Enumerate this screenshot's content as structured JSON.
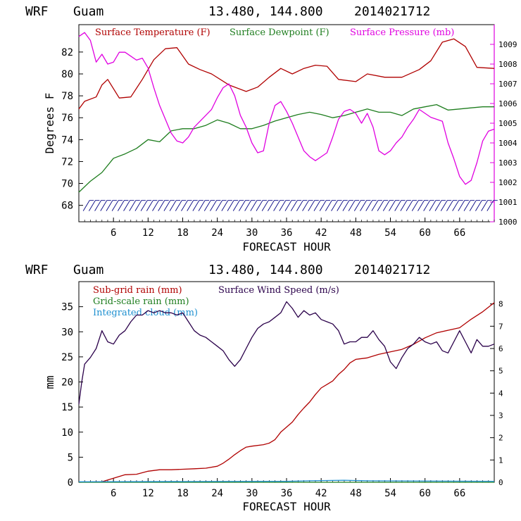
{
  "chart_data": [
    {
      "type": "line",
      "header": {
        "model": "WRF",
        "location": "Guam",
        "coords": "13.480, 144.800",
        "init": "2014021712"
      },
      "xlabel": "FORECAST HOUR",
      "ylabel": "Degrees F",
      "xlim": [
        0,
        72
      ],
      "xticks": [
        6,
        12,
        18,
        24,
        30,
        36,
        42,
        48,
        54,
        60,
        66
      ],
      "ylim": [
        66.5,
        84.5
      ],
      "yticks": [
        68,
        70,
        72,
        74,
        76,
        78,
        80,
        82
      ],
      "y2lim": [
        1000,
        1010
      ],
      "y2ticks": [
        1000,
        1001,
        1002,
        1003,
        1004,
        1005,
        1006,
        1007,
        1008,
        1009
      ],
      "colors": {
        "temperature": "#b00000",
        "dewpoint": "#1e7d1e",
        "pressure": "#e000e0",
        "barbs": "#000080"
      },
      "series": [
        {
          "name": "Surface Temperature (F)",
          "axis": "left",
          "x": [
            0,
            1,
            3,
            4,
            5,
            7,
            9,
            11,
            13,
            15,
            17,
            19,
            21,
            23,
            26,
            29,
            31,
            33,
            35,
            37,
            39,
            41,
            43,
            45,
            48,
            50,
            53,
            56,
            59,
            61,
            63,
            65,
            67,
            69,
            72
          ],
          "y": [
            76.8,
            77.5,
            77.9,
            79.0,
            79.5,
            77.8,
            77.9,
            79.5,
            81.3,
            82.3,
            82.4,
            80.9,
            80.4,
            80.0,
            79.0,
            78.4,
            78.8,
            79.7,
            80.5,
            80.0,
            80.5,
            80.8,
            80.7,
            79.5,
            79.3,
            80.0,
            79.7,
            79.7,
            80.4,
            81.2,
            82.9,
            83.2,
            82.5,
            80.6,
            80.5
          ]
        },
        {
          "name": "Surface Dewpoint (F)",
          "axis": "left",
          "x": [
            0,
            2,
            4,
            6,
            8,
            10,
            12,
            14,
            16,
            18,
            20,
            22,
            24,
            26,
            28,
            30,
            32,
            34,
            36,
            38,
            40,
            42,
            44,
            46,
            48,
            50,
            52,
            54,
            56,
            58,
            60,
            62,
            64,
            66,
            68,
            70,
            72
          ],
          "y": [
            69.2,
            70.2,
            71.0,
            72.3,
            72.7,
            73.2,
            74.0,
            73.8,
            74.8,
            75.0,
            75.0,
            75.3,
            75.8,
            75.5,
            75.0,
            75.0,
            75.3,
            75.7,
            76.0,
            76.3,
            76.5,
            76.3,
            76.0,
            76.2,
            76.5,
            76.8,
            76.5,
            76.5,
            76.2,
            76.8,
            77.0,
            77.2,
            76.7,
            76.8,
            76.9,
            77.0,
            77.0
          ]
        },
        {
          "name": "Surface Pressure (mb)",
          "axis": "right",
          "x": [
            0,
            1,
            2,
            3,
            4,
            5,
            6,
            7,
            8,
            9,
            10,
            11,
            12,
            13,
            14,
            15,
            16,
            17,
            18,
            19,
            20,
            21,
            22,
            23,
            24,
            25,
            26,
            27,
            28,
            29,
            30,
            31,
            32,
            33,
            34,
            35,
            36,
            37,
            38,
            39,
            40,
            41,
            42,
            43,
            44,
            45,
            46,
            47,
            48,
            49,
            50,
            51,
            52,
            53,
            54,
            55,
            56,
            57,
            58,
            59,
            60,
            61,
            62,
            63,
            64,
            65,
            66,
            67,
            68,
            69,
            70,
            71,
            72
          ],
          "y": [
            1009.4,
            1009.6,
            1009.2,
            1008.1,
            1008.5,
            1008.0,
            1008.1,
            1008.6,
            1008.6,
            1008.4,
            1008.2,
            1008.3,
            1007.8,
            1006.8,
            1005.9,
            1005.2,
            1004.5,
            1004.1,
            1004.0,
            1004.3,
            1004.8,
            1005.1,
            1005.4,
            1005.7,
            1006.3,
            1006.8,
            1007.0,
            1006.4,
            1005.4,
            1004.8,
            1004.0,
            1003.5,
            1003.6,
            1005.0,
            1005.9,
            1006.1,
            1005.6,
            1005.0,
            1004.3,
            1003.6,
            1003.3,
            1003.1,
            1003.3,
            1003.5,
            1004.3,
            1005.2,
            1005.6,
            1005.7,
            1005.5,
            1005.0,
            1005.5,
            1004.8,
            1003.6,
            1003.4,
            1003.6,
            1004.0,
            1004.3,
            1004.8,
            1005.2,
            1005.7,
            1005.5,
            1005.3,
            1005.2,
            1005.1,
            1004.0,
            1003.2,
            1002.3,
            1001.9,
            1002.1,
            1003.0,
            1004.1,
            1004.6,
            1004.7
          ]
        },
        {
          "name": "Wind barbs",
          "axis": "left",
          "kind": "barbs",
          "x": [
            1,
            2,
            3,
            4,
            5,
            6,
            7,
            8,
            9,
            10,
            11,
            12,
            13,
            14,
            15,
            16,
            17,
            18,
            19,
            20,
            21,
            22,
            23,
            24,
            25,
            26,
            27,
            28,
            29,
            30,
            31,
            32,
            33,
            34,
            35,
            36,
            37,
            38,
            39,
            40,
            41,
            42,
            43,
            44,
            45,
            46,
            47,
            48,
            49,
            50,
            51,
            52,
            53,
            54,
            55,
            56,
            57,
            58,
            59,
            60,
            61,
            62,
            63,
            64,
            65,
            66,
            67,
            68,
            69,
            70,
            71
          ],
          "y": [
            68.0,
            68.0,
            68.0,
            68.0,
            68.0,
            68.0,
            68.0,
            68.0,
            68.0,
            68.0,
            68.0,
            68.0,
            68.0,
            68.0,
            68.0,
            68.0,
            68.0,
            68.0,
            68.0,
            68.0,
            68.0,
            68.0,
            68.0,
            68.0,
            68.0,
            68.0,
            68.0,
            68.0,
            68.0,
            68.0,
            68.0,
            68.0,
            68.0,
            68.0,
            68.0,
            68.0,
            68.0,
            68.0,
            68.0,
            68.0,
            68.0,
            68.0,
            68.0,
            68.0,
            68.0,
            68.0,
            68.0,
            68.0,
            68.0,
            68.0,
            68.0,
            68.0,
            68.0,
            68.0,
            68.0,
            68.0,
            68.0,
            68.0,
            68.0,
            68.0,
            68.0,
            68.0,
            68.0,
            68.0,
            68.0,
            68.0,
            68.0,
            68.0,
            68.0,
            68.0,
            68.0
          ]
        }
      ]
    },
    {
      "type": "line",
      "header": {
        "model": "WRF",
        "location": "Guam",
        "coords": "13.480, 144.800",
        "init": "2014021712"
      },
      "xlabel": "FORECAST HOUR",
      "ylabel": "mm",
      "xlim": [
        0,
        72
      ],
      "xticks": [
        6,
        12,
        18,
        24,
        30,
        36,
        42,
        48,
        54,
        60,
        66
      ],
      "ylim": [
        0,
        40
      ],
      "yticks": [
        0,
        5,
        10,
        15,
        20,
        25,
        30,
        35
      ],
      "y2lim": [
        0,
        9
      ],
      "y2ticks": [
        0,
        1,
        2,
        3,
        4,
        5,
        6,
        7,
        8
      ],
      "colors": {
        "subgrid": "#b00000",
        "gridscale": "#1e7d1e",
        "cloud": "#1e90d0",
        "wind": "#2a004a"
      },
      "series": [
        {
          "name": "Sub-grid rain (mm)",
          "axis": "left",
          "x": [
            0,
            4,
            6,
            8,
            10,
            12,
            14,
            16,
            18,
            20,
            22,
            24,
            25,
            26,
            27,
            28,
            29,
            30,
            32,
            33,
            34,
            35,
            36,
            37,
            38,
            39,
            40,
            41,
            42,
            43,
            44,
            45,
            46,
            47,
            48,
            50,
            52,
            54,
            56,
            58,
            60,
            62,
            64,
            66,
            68,
            70,
            72
          ],
          "y": [
            0,
            0.1,
            0.8,
            1.5,
            1.6,
            2.2,
            2.5,
            2.5,
            2.6,
            2.7,
            2.8,
            3.2,
            3.8,
            4.6,
            5.5,
            6.3,
            7.0,
            7.2,
            7.5,
            7.8,
            8.5,
            10.0,
            11.0,
            12.0,
            13.5,
            14.8,
            16.0,
            17.5,
            18.8,
            19.5,
            20.2,
            21.5,
            22.5,
            23.8,
            24.5,
            24.8,
            25.5,
            26.0,
            26.5,
            27.5,
            28.8,
            29.8,
            30.3,
            30.8,
            32.5,
            34.0,
            35.8
          ]
        },
        {
          "name": "Grid-scale rain (mm)",
          "axis": "left",
          "x": [
            0,
            72
          ],
          "y": [
            0,
            0
          ]
        },
        {
          "name": "Integrated cloud (mm)",
          "axis": "left",
          "x": [
            0,
            36,
            40,
            46,
            50,
            72
          ],
          "y": [
            0.1,
            0.2,
            0.3,
            0.4,
            0.3,
            0.2
          ]
        },
        {
          "name": "Surface Wind Speed (m/s)",
          "axis": "right",
          "x": [
            0,
            0.5,
            1,
            2,
            3,
            4,
            5,
            6,
            7,
            8,
            9,
            10,
            11,
            12,
            13,
            14,
            15,
            16,
            17,
            18,
            19,
            20,
            21,
            22,
            23,
            24,
            25,
            26,
            27,
            28,
            29,
            30,
            31,
            32,
            33,
            34,
            35,
            36,
            37,
            38,
            39,
            40,
            41,
            42,
            43,
            44,
            45,
            46,
            47,
            48,
            49,
            50,
            51,
            52,
            53,
            54,
            55,
            56,
            57,
            58,
            59,
            60,
            61,
            62,
            63,
            64,
            65,
            66,
            67,
            68,
            69,
            70,
            71,
            72
          ],
          "y": [
            3.5,
            4.5,
            5.3,
            5.6,
            6.0,
            6.8,
            6.3,
            6.2,
            6.6,
            6.8,
            7.2,
            7.5,
            7.5,
            7.7,
            7.6,
            7.7,
            7.6,
            7.6,
            7.5,
            7.6,
            7.2,
            6.8,
            6.6,
            6.5,
            6.3,
            6.1,
            5.9,
            5.5,
            5.2,
            5.5,
            6.0,
            6.5,
            6.9,
            7.1,
            7.2,
            7.4,
            7.6,
            8.1,
            7.8,
            7.4,
            7.7,
            7.5,
            7.6,
            7.3,
            7.2,
            7.1,
            6.8,
            6.2,
            6.3,
            6.3,
            6.5,
            6.5,
            6.8,
            6.4,
            6.1,
            5.4,
            5.1,
            5.6,
            6.0,
            6.2,
            6.5,
            6.3,
            6.2,
            6.3,
            5.9,
            5.8,
            6.3,
            6.8,
            6.3,
            5.8,
            6.4,
            6.1,
            6.1,
            6.2
          ]
        }
      ]
    }
  ]
}
